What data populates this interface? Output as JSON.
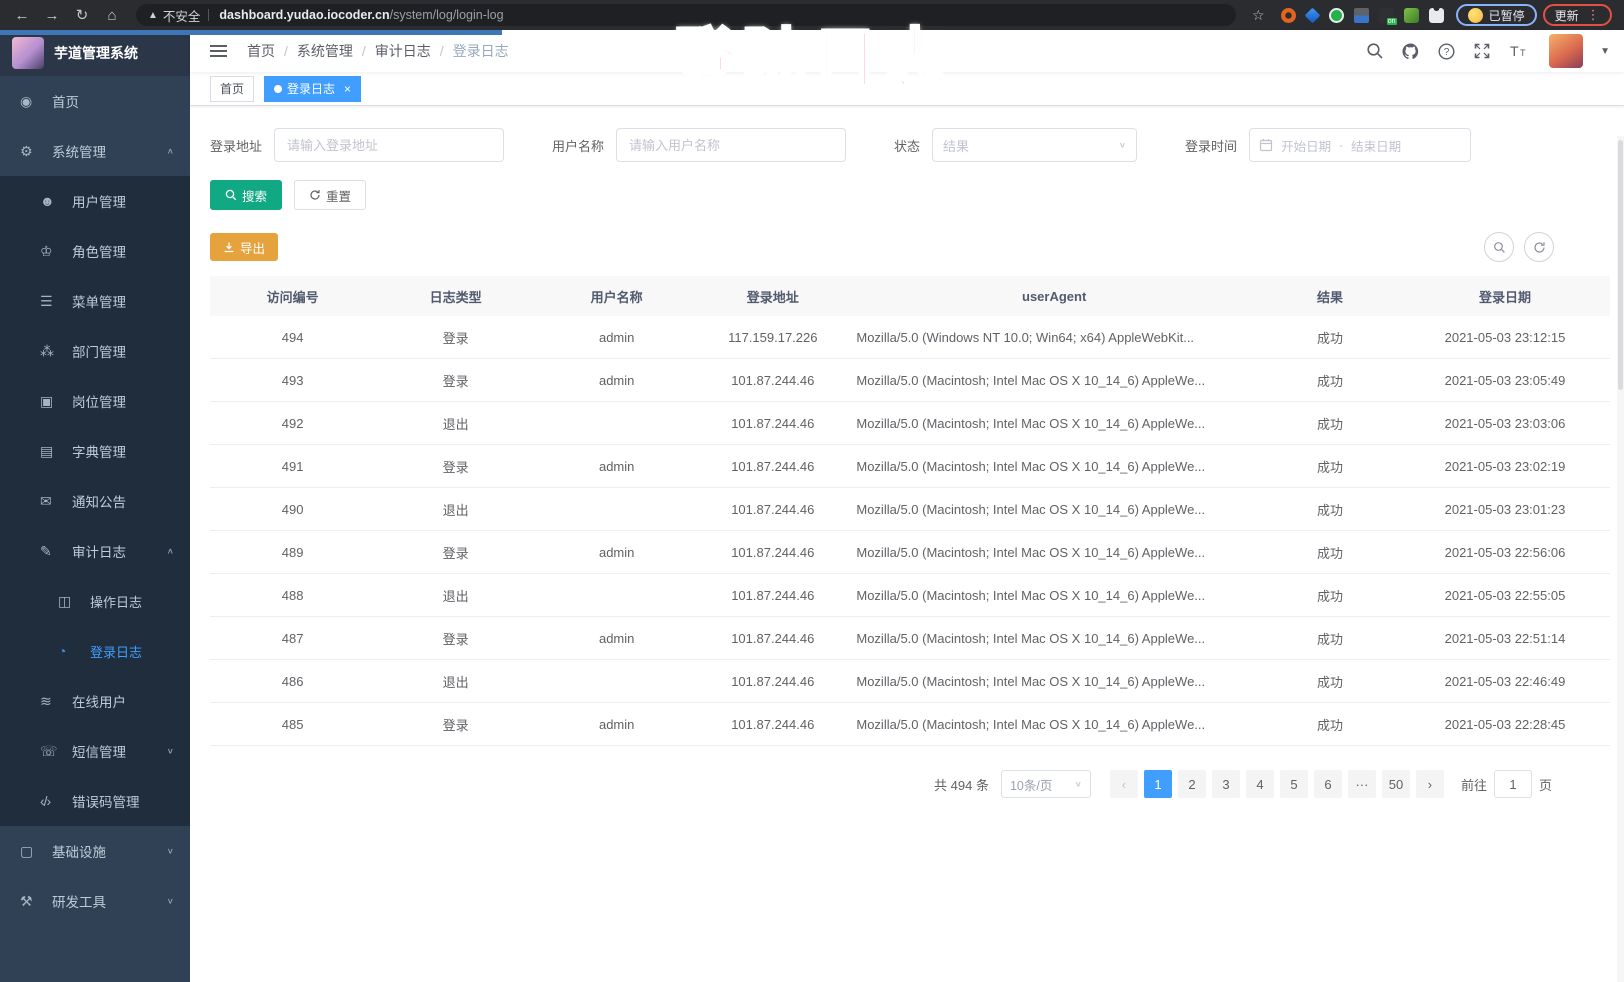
{
  "browser": {
    "security_label": "不安全",
    "url_host": "dashboard.yudao.iocoder.cn",
    "url_path": "/system/log/login-log",
    "paused_label": "已暂停",
    "update_label": "更新"
  },
  "overlay": {
    "annotation": "登陆日志"
  },
  "sidebar": {
    "app_title": "芋道管理系统",
    "items": [
      {
        "id": "home",
        "label": "首页",
        "icon": "home-icon",
        "level": 1
      },
      {
        "id": "system",
        "label": "系统管理",
        "icon": "gear-icon",
        "level": 1,
        "arrow": "up"
      },
      {
        "id": "user",
        "label": "用户管理",
        "icon": "user-icon",
        "level": 2
      },
      {
        "id": "role",
        "label": "角色管理",
        "icon": "roles-icon",
        "level": 2
      },
      {
        "id": "menu",
        "label": "菜单管理",
        "icon": "menu-icon",
        "level": 2
      },
      {
        "id": "dept",
        "label": "部门管理",
        "icon": "dept-tree-icon",
        "level": 2
      },
      {
        "id": "post",
        "label": "岗位管理",
        "icon": "post-icon",
        "level": 2
      },
      {
        "id": "dict",
        "label": "字典管理",
        "icon": "dict-icon",
        "level": 2
      },
      {
        "id": "notice",
        "label": "通知公告",
        "icon": "notice-icon",
        "level": 2
      },
      {
        "id": "audit-log",
        "label": "审计日志",
        "icon": "audit-log-icon",
        "level": 2,
        "arrow": "up"
      },
      {
        "id": "operate-log",
        "label": "操作日志",
        "icon": "operate-log-icon",
        "level": 3
      },
      {
        "id": "login-log",
        "label": "登录日志",
        "icon": "login-log-icon",
        "level": 3,
        "active": true
      },
      {
        "id": "online-user",
        "label": "在线用户",
        "icon": "online-user-icon",
        "level": 2
      },
      {
        "id": "sms",
        "label": "短信管理",
        "icon": "sms-icon",
        "level": 2,
        "arrow": "down"
      },
      {
        "id": "error-code",
        "label": "错误码管理",
        "icon": "error-code-icon",
        "level": 2
      },
      {
        "id": "infra",
        "label": "基础设施",
        "icon": "infra-icon",
        "level": 1,
        "arrow": "down"
      },
      {
        "id": "dev-tools",
        "label": "研发工具",
        "icon": "tools-icon",
        "level": 1,
        "arrow": "down"
      }
    ]
  },
  "navbar": {
    "breadcrumb": [
      "首页",
      "系统管理",
      "审计日志",
      "登录日志"
    ]
  },
  "tags": [
    {
      "label": "首页"
    },
    {
      "label": "登录日志"
    }
  ],
  "filters": {
    "login_address": {
      "label": "登录地址",
      "placeholder": "请输入登录地址"
    },
    "username": {
      "label": "用户名称",
      "placeholder": "请输入用户名称"
    },
    "status": {
      "label": "状态",
      "placeholder": "结果"
    },
    "login_time": {
      "label": "登录时间",
      "start_placeholder": "开始日期",
      "separator": "-",
      "end_placeholder": "结束日期"
    }
  },
  "actions": {
    "search": "搜索",
    "reset": "重置",
    "export": "导出"
  },
  "table": {
    "columns": [
      "访问编号",
      "日志类型",
      "用户名称",
      "登录地址",
      "userAgent",
      "结果",
      "登录日期"
    ],
    "rows": [
      [
        "494",
        "登录",
        "admin",
        "117.159.17.226",
        "Mozilla/5.0 (Windows NT 10.0; Win64; x64) AppleWebKit...",
        "成功",
        "2021-05-03 23:12:15"
      ],
      [
        "493",
        "登录",
        "admin",
        "101.87.244.46",
        "Mozilla/5.0 (Macintosh; Intel Mac OS X 10_14_6) AppleWe...",
        "成功",
        "2021-05-03 23:05:49"
      ],
      [
        "492",
        "退出",
        "",
        "101.87.244.46",
        "Mozilla/5.0 (Macintosh; Intel Mac OS X 10_14_6) AppleWe...",
        "成功",
        "2021-05-03 23:03:06"
      ],
      [
        "491",
        "登录",
        "admin",
        "101.87.244.46",
        "Mozilla/5.0 (Macintosh; Intel Mac OS X 10_14_6) AppleWe...",
        "成功",
        "2021-05-03 23:02:19"
      ],
      [
        "490",
        "退出",
        "",
        "101.87.244.46",
        "Mozilla/5.0 (Macintosh; Intel Mac OS X 10_14_6) AppleWe...",
        "成功",
        "2021-05-03 23:01:23"
      ],
      [
        "489",
        "登录",
        "admin",
        "101.87.244.46",
        "Mozilla/5.0 (Macintosh; Intel Mac OS X 10_14_6) AppleWe...",
        "成功",
        "2021-05-03 22:56:06"
      ],
      [
        "488",
        "退出",
        "",
        "101.87.244.46",
        "Mozilla/5.0 (Macintosh; Intel Mac OS X 10_14_6) AppleWe...",
        "成功",
        "2021-05-03 22:55:05"
      ],
      [
        "487",
        "登录",
        "admin",
        "101.87.244.46",
        "Mozilla/5.0 (Macintosh; Intel Mac OS X 10_14_6) AppleWe...",
        "成功",
        "2021-05-03 22:51:14"
      ],
      [
        "486",
        "退出",
        "",
        "101.87.244.46",
        "Mozilla/5.0 (Macintosh; Intel Mac OS X 10_14_6) AppleWe...",
        "成功",
        "2021-05-03 22:46:49"
      ],
      [
        "485",
        "登录",
        "admin",
        "101.87.244.46",
        "Mozilla/5.0 (Macintosh; Intel Mac OS X 10_14_6) AppleWe...",
        "成功",
        "2021-05-03 22:28:45"
      ]
    ]
  },
  "pagination": {
    "total": "共 494 条",
    "page_size": "10条/页",
    "pages": [
      "1",
      "2",
      "3",
      "4",
      "5",
      "6",
      "···",
      "50"
    ],
    "active": "1",
    "prev": "‹",
    "next": "›",
    "goto_label": "前往",
    "goto_value": "1",
    "unit": "页"
  },
  "colors": {
    "accent": "#409eff",
    "search_button": "#11a983",
    "export_button": "#e6a23c",
    "annotation": "#f4416f",
    "sidebar_bg": "#304156",
    "submenu_bg": "#1f2d3d"
  }
}
